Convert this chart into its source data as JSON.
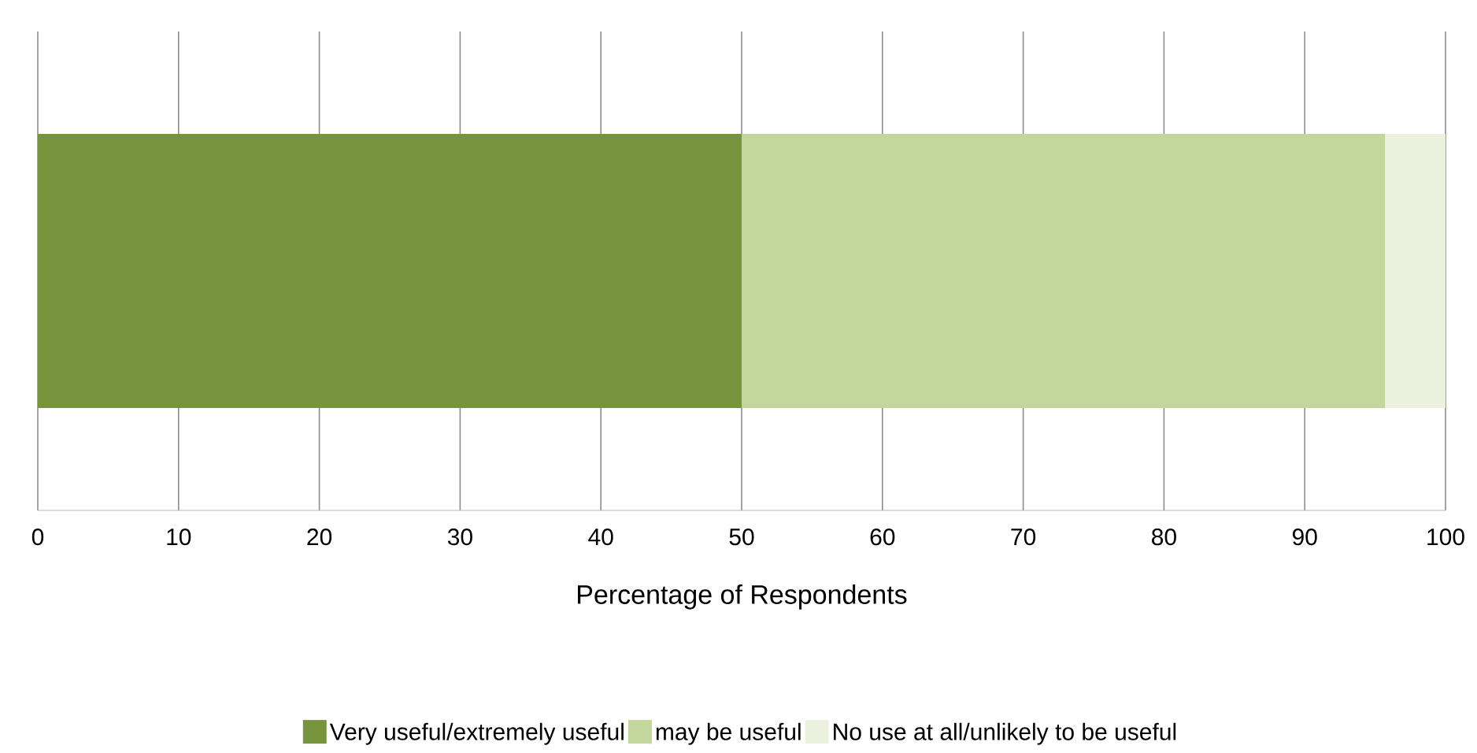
{
  "chart_data": {
    "type": "bar",
    "orientation": "horizontal",
    "stacked": true,
    "categories": [
      null
    ],
    "series": [
      {
        "name": "Very useful/extremely useful",
        "color": "#77933c",
        "values": [
          50
        ]
      },
      {
        "name": "may be useful",
        "color": "#c3d69b",
        "values": [
          45.7
        ]
      },
      {
        "name": "No use at all/unlikely to be useful",
        "color": "#ebf1de",
        "values": [
          4.3
        ]
      }
    ],
    "xlim": [
      0,
      100
    ],
    "xticks": [
      0,
      10,
      20,
      30,
      40,
      50,
      60,
      70,
      80,
      90,
      100
    ],
    "xlabel": "Percentage of Respondents",
    "grid": "x",
    "legend": "bottom"
  }
}
